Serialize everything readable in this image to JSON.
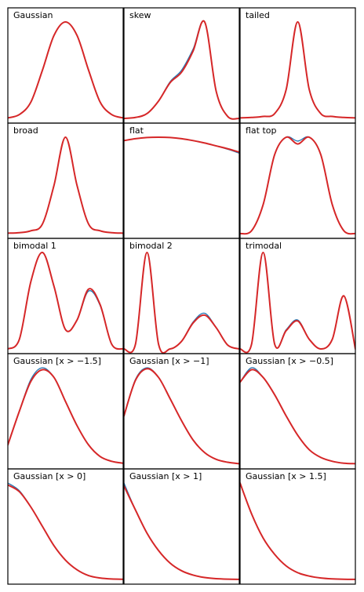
{
  "chart_data": {
    "type": "line",
    "grid": false,
    "layout": "5 rows x 3 columns of panels, no axes ticks, no gridlines",
    "colors": {
      "reference": "#1f77b4",
      "approximation": "#d62728"
    },
    "panels": [
      {
        "title": "Gaussian",
        "x": [
          0,
          0.1,
          0.2,
          0.3,
          0.4,
          0.5,
          0.6,
          0.7,
          0.8,
          0.9,
          1
        ],
        "series": [
          {
            "color": "#1f77b4",
            "values": [
              0.005,
              0.04,
              0.17,
              0.5,
              0.86,
              1,
              0.86,
              0.5,
              0.17,
              0.04,
              0.005
            ]
          },
          {
            "color": "#d62728",
            "values": [
              0.005,
              0.04,
              0.17,
              0.5,
              0.86,
              1,
              0.86,
              0.5,
              0.17,
              0.04,
              0.005
            ]
          }
        ]
      },
      {
        "title": "skew",
        "x": [
          0,
          0.1,
          0.2,
          0.3,
          0.4,
          0.5,
          0.6,
          0.7,
          0.8,
          0.9,
          1
        ],
        "series": [
          {
            "color": "#1f77b4",
            "values": [
              0,
              0.01,
              0.05,
              0.18,
              0.38,
              0.5,
              0.72,
              1,
              0.28,
              0.02,
              0
            ]
          },
          {
            "color": "#d62728",
            "values": [
              0,
              0.01,
              0.05,
              0.18,
              0.37,
              0.48,
              0.7,
              1,
              0.28,
              0.02,
              0
            ]
          }
        ]
      },
      {
        "title": "tailed",
        "x": [
          0,
          0.1,
          0.2,
          0.3,
          0.4,
          0.5,
          0.6,
          0.7,
          0.8,
          0.9,
          1
        ],
        "series": [
          {
            "color": "#1f77b4",
            "values": [
              0.005,
              0.01,
              0.02,
              0.05,
              0.3,
              1,
              0.3,
              0.05,
              0.02,
              0.01,
              0.005
            ]
          },
          {
            "color": "#d62728",
            "values": [
              0.005,
              0.01,
              0.02,
              0.05,
              0.3,
              1,
              0.3,
              0.05,
              0.02,
              0.01,
              0.005
            ]
          }
        ]
      },
      {
        "title": "broad",
        "x": [
          0,
          0.1,
          0.2,
          0.3,
          0.4,
          0.5,
          0.6,
          0.7,
          0.8,
          0.9,
          1
        ],
        "series": [
          {
            "color": "#1f77b4",
            "values": [
              0.005,
              0.01,
              0.03,
              0.1,
              0.5,
              1,
              0.5,
              0.1,
              0.03,
              0.01,
              0.005
            ]
          },
          {
            "color": "#d62728",
            "values": [
              0.005,
              0.01,
              0.03,
              0.1,
              0.5,
              1,
              0.5,
              0.1,
              0.03,
              0.01,
              0.005
            ]
          }
        ]
      },
      {
        "title": "flat",
        "x": [
          0,
          0.1,
          0.2,
          0.3,
          0.4,
          0.5,
          0.6,
          0.7,
          0.8,
          0.9,
          1
        ],
        "series": [
          {
            "color": "#1f77b4",
            "values": [
              0.965,
              0.985,
              0.997,
              1,
              0.997,
              0.985,
              0.965,
              0.94,
              0.91,
              0.875,
              0.835
            ]
          },
          {
            "color": "#d62728",
            "values": [
              0.965,
              0.985,
              0.997,
              1,
              0.997,
              0.985,
              0.965,
              0.94,
              0.91,
              0.88,
              0.845
            ]
          }
        ]
      },
      {
        "title": "flat top",
        "x": [
          0,
          0.1,
          0.2,
          0.3,
          0.4,
          0.5,
          0.6,
          0.7,
          0.8,
          0.9,
          1
        ],
        "series": [
          {
            "color": "#1f77b4",
            "values": [
              0,
              0.03,
              0.3,
              0.82,
              1,
              0.96,
              1,
              0.82,
              0.3,
              0.03,
              0
            ]
          },
          {
            "color": "#d62728",
            "values": [
              0,
              0.03,
              0.3,
              0.82,
              1,
              0.93,
              1,
              0.82,
              0.3,
              0.03,
              0
            ]
          }
        ]
      },
      {
        "title": "bimodal 1",
        "x": [
          0,
          0.1,
          0.2,
          0.3,
          0.4,
          0.5,
          0.6,
          0.7,
          0.8,
          0.9,
          1
        ],
        "series": [
          {
            "color": "#1f77b4",
            "values": [
              0,
              0.1,
              0.7,
              1,
              0.65,
              0.2,
              0.3,
              0.6,
              0.45,
              0.05,
              0
            ]
          },
          {
            "color": "#d62728",
            "values": [
              0,
              0.1,
              0.7,
              1,
              0.65,
              0.2,
              0.3,
              0.62,
              0.46,
              0.05,
              0
            ]
          }
        ]
      },
      {
        "title": "bimodal 2",
        "x": [
          0,
          0.1,
          0.2,
          0.3,
          0.4,
          0.5,
          0.6,
          0.7,
          0.8,
          0.9,
          1
        ],
        "series": [
          {
            "color": "#1f77b4",
            "values": [
              0,
              0.05,
              1,
              0.05,
              0,
              0.08,
              0.28,
              0.37,
              0.22,
              0.04,
              0
            ]
          },
          {
            "color": "#d62728",
            "values": [
              0,
              0.05,
              1,
              0.05,
              0,
              0.08,
              0.27,
              0.35,
              0.22,
              0.04,
              0
            ]
          }
        ]
      },
      {
        "title": "trimodal",
        "x": [
          0,
          0.1,
          0.2,
          0.3,
          0.4,
          0.5,
          0.6,
          0.7,
          0.8,
          0.9,
          1
        ],
        "series": [
          {
            "color": "#1f77b4",
            "values": [
              0,
              0.05,
              1,
              0.05,
              0.2,
              0.3,
              0.1,
              0,
              0.1,
              0.55,
              0
            ]
          },
          {
            "color": "#d62728",
            "values": [
              0,
              0.05,
              1,
              0.05,
              0.19,
              0.29,
              0.1,
              0,
              0.1,
              0.55,
              0
            ]
          }
        ]
      },
      {
        "title": "Gaussian [x > −1.5]",
        "x": [
          0,
          0.1,
          0.2,
          0.3,
          0.4,
          0.5,
          0.6,
          0.7,
          0.8,
          0.9,
          1
        ],
        "series": [
          {
            "color": "#1f77b4",
            "values": [
              0.2,
              0.55,
              0.88,
              1,
              0.9,
              0.65,
              0.4,
              0.2,
              0.08,
              0.03,
              0.01
            ]
          },
          {
            "color": "#d62728",
            "values": [
              0.2,
              0.55,
              0.86,
              0.98,
              0.9,
              0.65,
              0.4,
              0.2,
              0.08,
              0.03,
              0.01
            ]
          }
        ]
      },
      {
        "title": "Gaussian [x > −1]",
        "x": [
          0,
          0.1,
          0.2,
          0.3,
          0.4,
          0.5,
          0.6,
          0.7,
          0.8,
          0.9,
          1
        ],
        "series": [
          {
            "color": "#1f77b4",
            "values": [
              0.5,
              0.88,
              1,
              0.9,
              0.68,
              0.45,
              0.25,
              0.12,
              0.05,
              0.02,
              0.005
            ]
          },
          {
            "color": "#d62728",
            "values": [
              0.5,
              0.87,
              0.99,
              0.9,
              0.68,
              0.45,
              0.25,
              0.12,
              0.05,
              0.02,
              0.005
            ]
          }
        ]
      },
      {
        "title": "Gaussian [x > −0.5]",
        "x": [
          0,
          0.1,
          0.2,
          0.3,
          0.4,
          0.5,
          0.6,
          0.7,
          0.8,
          0.9,
          1
        ],
        "series": [
          {
            "color": "#1f77b4",
            "values": [
              0.85,
              1,
              0.9,
              0.72,
              0.5,
              0.3,
              0.15,
              0.07,
              0.03,
              0.01,
              0.005
            ]
          },
          {
            "color": "#d62728",
            "values": [
              0.85,
              0.98,
              0.9,
              0.72,
              0.5,
              0.3,
              0.15,
              0.07,
              0.03,
              0.01,
              0.005
            ]
          }
        ]
      },
      {
        "title": "Gaussian [x > 0]",
        "x": [
          0,
          0.1,
          0.2,
          0.3,
          0.4,
          0.5,
          0.6,
          0.7,
          0.8,
          0.9,
          1
        ],
        "series": [
          {
            "color": "#1f77b4",
            "values": [
              1,
              0.92,
              0.75,
              0.55,
              0.35,
              0.2,
              0.1,
              0.04,
              0.015,
              0.005,
              0.002
            ]
          },
          {
            "color": "#d62728",
            "values": [
              0.98,
              0.91,
              0.75,
              0.55,
              0.35,
              0.2,
              0.1,
              0.04,
              0.015,
              0.005,
              0.002
            ]
          }
        ]
      },
      {
        "title": "Gaussian [x > 1]",
        "x": [
          0,
          0.1,
          0.2,
          0.3,
          0.4,
          0.5,
          0.6,
          0.7,
          0.8,
          0.9,
          1
        ],
        "series": [
          {
            "color": "#1f77b4",
            "values": [
              1,
              0.72,
              0.48,
              0.3,
              0.17,
              0.09,
              0.045,
              0.02,
              0.008,
              0.003,
              0.001
            ]
          },
          {
            "color": "#d62728",
            "values": [
              0.97,
              0.72,
              0.48,
              0.3,
              0.17,
              0.09,
              0.045,
              0.02,
              0.008,
              0.003,
              0.001
            ]
          }
        ]
      },
      {
        "title": "Gaussian [x > 1.5]",
        "x": [
          0,
          0.1,
          0.2,
          0.3,
          0.4,
          0.5,
          0.6,
          0.7,
          0.8,
          0.9,
          1
        ],
        "series": [
          {
            "color": "#1f77b4",
            "values": [
              1,
              0.68,
              0.43,
              0.26,
              0.14,
              0.07,
              0.035,
              0.015,
              0.006,
              0.002,
              0.001
            ]
          },
          {
            "color": "#d62728",
            "values": [
              1,
              0.68,
              0.43,
              0.26,
              0.14,
              0.07,
              0.035,
              0.015,
              0.006,
              0.002,
              0.001
            ]
          }
        ]
      }
    ]
  }
}
